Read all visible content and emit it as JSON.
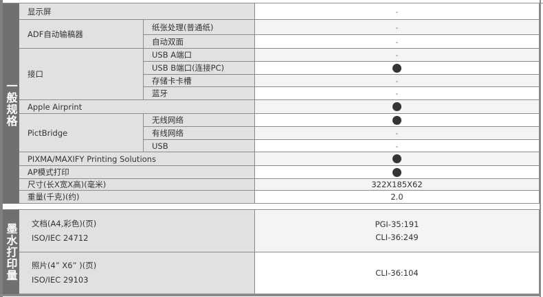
{
  "categories": {
    "general": "一般规格",
    "ink_yield": "墨水打印量"
  },
  "general_rows": [
    {
      "label": "显示屏",
      "value": "-"
    },
    {
      "label": "ADF自动输稿器",
      "subs": [
        {
          "label": "纸张处理(普通纸)",
          "value": "-"
        },
        {
          "label": "自动双面",
          "value": "-"
        }
      ]
    },
    {
      "label": "接口",
      "subs": [
        {
          "label": "USB A端口",
          "value": "-"
        },
        {
          "label": "USB B端口(连接PC)",
          "value": "●"
        },
        {
          "label": "存储卡卡槽",
          "value": "-"
        },
        {
          "label": "蓝牙",
          "value": "-"
        }
      ]
    },
    {
      "label": "Apple Airprint",
      "value": "●"
    },
    {
      "label": "PictBridge",
      "subs": [
        {
          "label": "无线网络",
          "value": "●"
        },
        {
          "label": "有线网络",
          "value": "-"
        },
        {
          "label": "USB",
          "value": "-"
        }
      ]
    },
    {
      "label": "PIXMA/MAXIFY Printing Solutions",
      "value": "●"
    },
    {
      "label": "AP模式打印",
      "value": "●"
    },
    {
      "label": "尺寸(长X宽X高)(毫米)",
      "value": "322X185X62"
    },
    {
      "label": "重量(千克)(约)",
      "value": "2.0"
    }
  ],
  "ink_rows": [
    {
      "label": "文档(A4,彩色)(页)",
      "standard": "ISO/IEC 24712",
      "values": [
        "PGI-35:191",
        "CLI-36:249"
      ]
    },
    {
      "label": "照片(4” X6” )(页)",
      "standard": "ISO/IEC 29103",
      "values": [
        "CLI-36:104"
      ]
    }
  ],
  "colors": {
    "category_bg": "#707070",
    "label_bg": "#e1e1e1",
    "alt_row_bg": "#f3f4f4",
    "border": "#8a8a8a",
    "dot": "#353535"
  }
}
